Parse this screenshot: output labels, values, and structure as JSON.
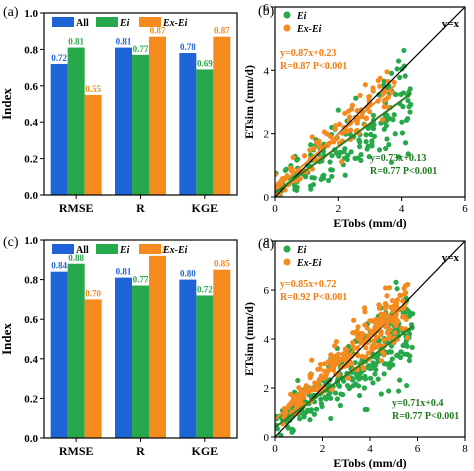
{
  "colors": {
    "all": "#1f64d6",
    "ei": "#27a84a",
    "exei": "#f58a1f",
    "fit_line": "#2e7d1f",
    "one_to_one": "#000000",
    "text_ei": "#1e7a1e",
    "text_exei": "#f07d12"
  },
  "chart_data": [
    {
      "panel": "(a)",
      "type": "bar",
      "ylabel": "Index",
      "ylim": [
        0,
        1.0
      ],
      "yticks": [
        "0.0",
        "0.2",
        "0.4",
        "0.6",
        "0.8",
        "1.0"
      ],
      "categories": [
        "RMSE",
        "R",
        "KGE"
      ],
      "legend": [
        "All",
        "Ei",
        "Ex-Ei"
      ],
      "series": [
        {
          "name": "All",
          "values": [
            0.72,
            0.81,
            0.78
          ],
          "labels": [
            "0.72",
            "0.81",
            "0.78"
          ]
        },
        {
          "name": "Ei",
          "values": [
            0.81,
            0.77,
            0.69
          ],
          "labels": [
            "0.81",
            "0.77",
            "0.69"
          ]
        },
        {
          "name": "Ex-Ei",
          "values": [
            0.55,
            0.87,
            0.87
          ],
          "labels": [
            "0.55",
            "0.87",
            "0.87"
          ]
        }
      ]
    },
    {
      "panel": "(b)",
      "type": "scatter",
      "xlabel": "ETobs (mm/d)",
      "ylabel": "ETsim (mm/d)",
      "xlim": [
        0,
        6
      ],
      "ylim": [
        0,
        6
      ],
      "xticks": [
        "0",
        "2",
        "4",
        "6"
      ],
      "yticks": [
        "0",
        "2",
        "4",
        "6"
      ],
      "one_to_one_label": "y=x",
      "legend": [
        "Ei",
        "Ex-Ei"
      ],
      "series": [
        {
          "name": "Ei",
          "n_points": 180,
          "x_range": [
            0,
            4.3
          ],
          "fit": {
            "slope": 0.73,
            "intercept": 0.13
          }
        },
        {
          "name": "Ex-Ei",
          "n_points": 110,
          "x_range": [
            0,
            3.8
          ],
          "fit": {
            "slope": 0.87,
            "intercept": 0.23
          }
        }
      ],
      "annotations": {
        "exei_eq": "y=0.87x+0.23",
        "exei_r": "R=0.87 P<0.001",
        "ei_eq": "y=0.73x+0.13",
        "ei_r": "R=0.77 P<0.001"
      }
    },
    {
      "panel": "(c)",
      "type": "bar",
      "ylabel": "Index",
      "ylim": [
        0,
        1.0
      ],
      "yticks": [
        "0.0",
        "0.2",
        "0.4",
        "0.6",
        "0.8",
        "1.0"
      ],
      "categories": [
        "RMSE",
        "R",
        "KGE"
      ],
      "legend": [
        "All",
        "Ei",
        "Ex-Ei"
      ],
      "series": [
        {
          "name": "All",
          "values": [
            0.84,
            0.81,
            0.8
          ],
          "labels": [
            "0.84",
            "0.81",
            "0.80"
          ]
        },
        {
          "name": "Ei",
          "values": [
            0.88,
            0.77,
            0.72
          ],
          "labels": [
            "0.88",
            "0.77",
            "0.72"
          ]
        },
        {
          "name": "Ex-Ei",
          "values": [
            0.7,
            0.92,
            0.85
          ],
          "labels": [
            "0.70",
            "0.92",
            "0.85"
          ]
        }
      ]
    },
    {
      "panel": "(d)",
      "type": "scatter",
      "xlabel": "ETobs (mm/d)",
      "ylabel": "ETsim (mm/d)",
      "xlim": [
        0,
        8
      ],
      "ylim": [
        0,
        8
      ],
      "xticks": [
        "0",
        "2",
        "4",
        "6",
        "8"
      ],
      "yticks": [
        "0",
        "2",
        "4",
        "6",
        "8"
      ],
      "one_to_one_label": "y=x",
      "legend": [
        "Ei",
        "Ex-Ei"
      ],
      "series": [
        {
          "name": "Ei",
          "n_points": 320,
          "x_range": [
            0,
            5.8
          ],
          "fit": {
            "slope": 0.71,
            "intercept": 0.4
          }
        },
        {
          "name": "Ex-Ei",
          "n_points": 260,
          "x_range": [
            0.3,
            5.6
          ],
          "fit": {
            "slope": 0.85,
            "intercept": 0.72
          }
        }
      ],
      "annotations": {
        "exei_eq": "y=0.85x+0.72",
        "exei_r": "R=0.92 P<0.001",
        "ei_eq": "y=0.71x+0.4",
        "ei_r": "R=0.77 P<0.001"
      }
    }
  ]
}
